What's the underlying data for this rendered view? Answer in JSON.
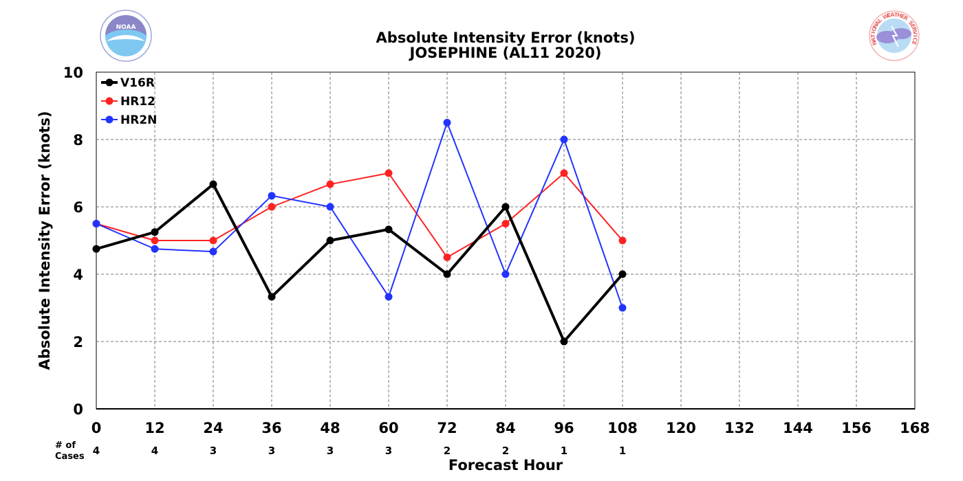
{
  "chart_data": {
    "type": "line",
    "title": "Absolute Intensity Error (knots)",
    "subtitle": "JOSEPHINE (AL11 2020)",
    "xlabel": "Forecast Hour",
    "ylabel": "Absolute Intensity Error (knots)",
    "xlim": [
      0,
      168
    ],
    "ylim": [
      0,
      10
    ],
    "x_ticks": [
      "0",
      "12",
      "24",
      "36",
      "48",
      "60",
      "72",
      "84",
      "96",
      "108",
      "120",
      "132",
      "144",
      "156",
      "168"
    ],
    "y_ticks": [
      "0",
      "2",
      "4",
      "6",
      "8",
      "10"
    ],
    "grid": true,
    "legend_position": "top-left",
    "cases_label_1": "# of",
    "cases_label_2": "Cases",
    "cases": [
      {
        "x": 0,
        "n": "4"
      },
      {
        "x": 12,
        "n": "4"
      },
      {
        "x": 24,
        "n": "3"
      },
      {
        "x": 36,
        "n": "3"
      },
      {
        "x": 48,
        "n": "3"
      },
      {
        "x": 60,
        "n": "3"
      },
      {
        "x": 72,
        "n": "2"
      },
      {
        "x": 84,
        "n": "2"
      },
      {
        "x": 96,
        "n": "1"
      },
      {
        "x": 108,
        "n": "1"
      }
    ],
    "x": [
      0,
      12,
      24,
      36,
      48,
      60,
      72,
      84,
      96,
      108
    ],
    "series": [
      {
        "name": "V16R",
        "color": "#000000",
        "width": 4,
        "values": [
          4.75,
          5.25,
          6.67,
          3.33,
          5.0,
          5.33,
          4.0,
          6.0,
          2.0,
          4.0
        ]
      },
      {
        "name": "HR12",
        "color": "#ff2222",
        "width": 2,
        "values": [
          5.5,
          5.0,
          5.0,
          6.0,
          6.67,
          7.0,
          4.5,
          5.5,
          7.0,
          5.0
        ]
      },
      {
        "name": "HR2N",
        "color": "#2233ff",
        "width": 2,
        "values": [
          5.5,
          4.75,
          4.67,
          6.33,
          6.0,
          3.33,
          8.5,
          4.0,
          8.0,
          3.0
        ]
      }
    ]
  },
  "logos": {
    "left": {
      "name": "NOAA",
      "text": "NOAA"
    },
    "right": {
      "name": "National Weather Service",
      "text": "NATIONAL WEATHER SERVICE"
    }
  }
}
